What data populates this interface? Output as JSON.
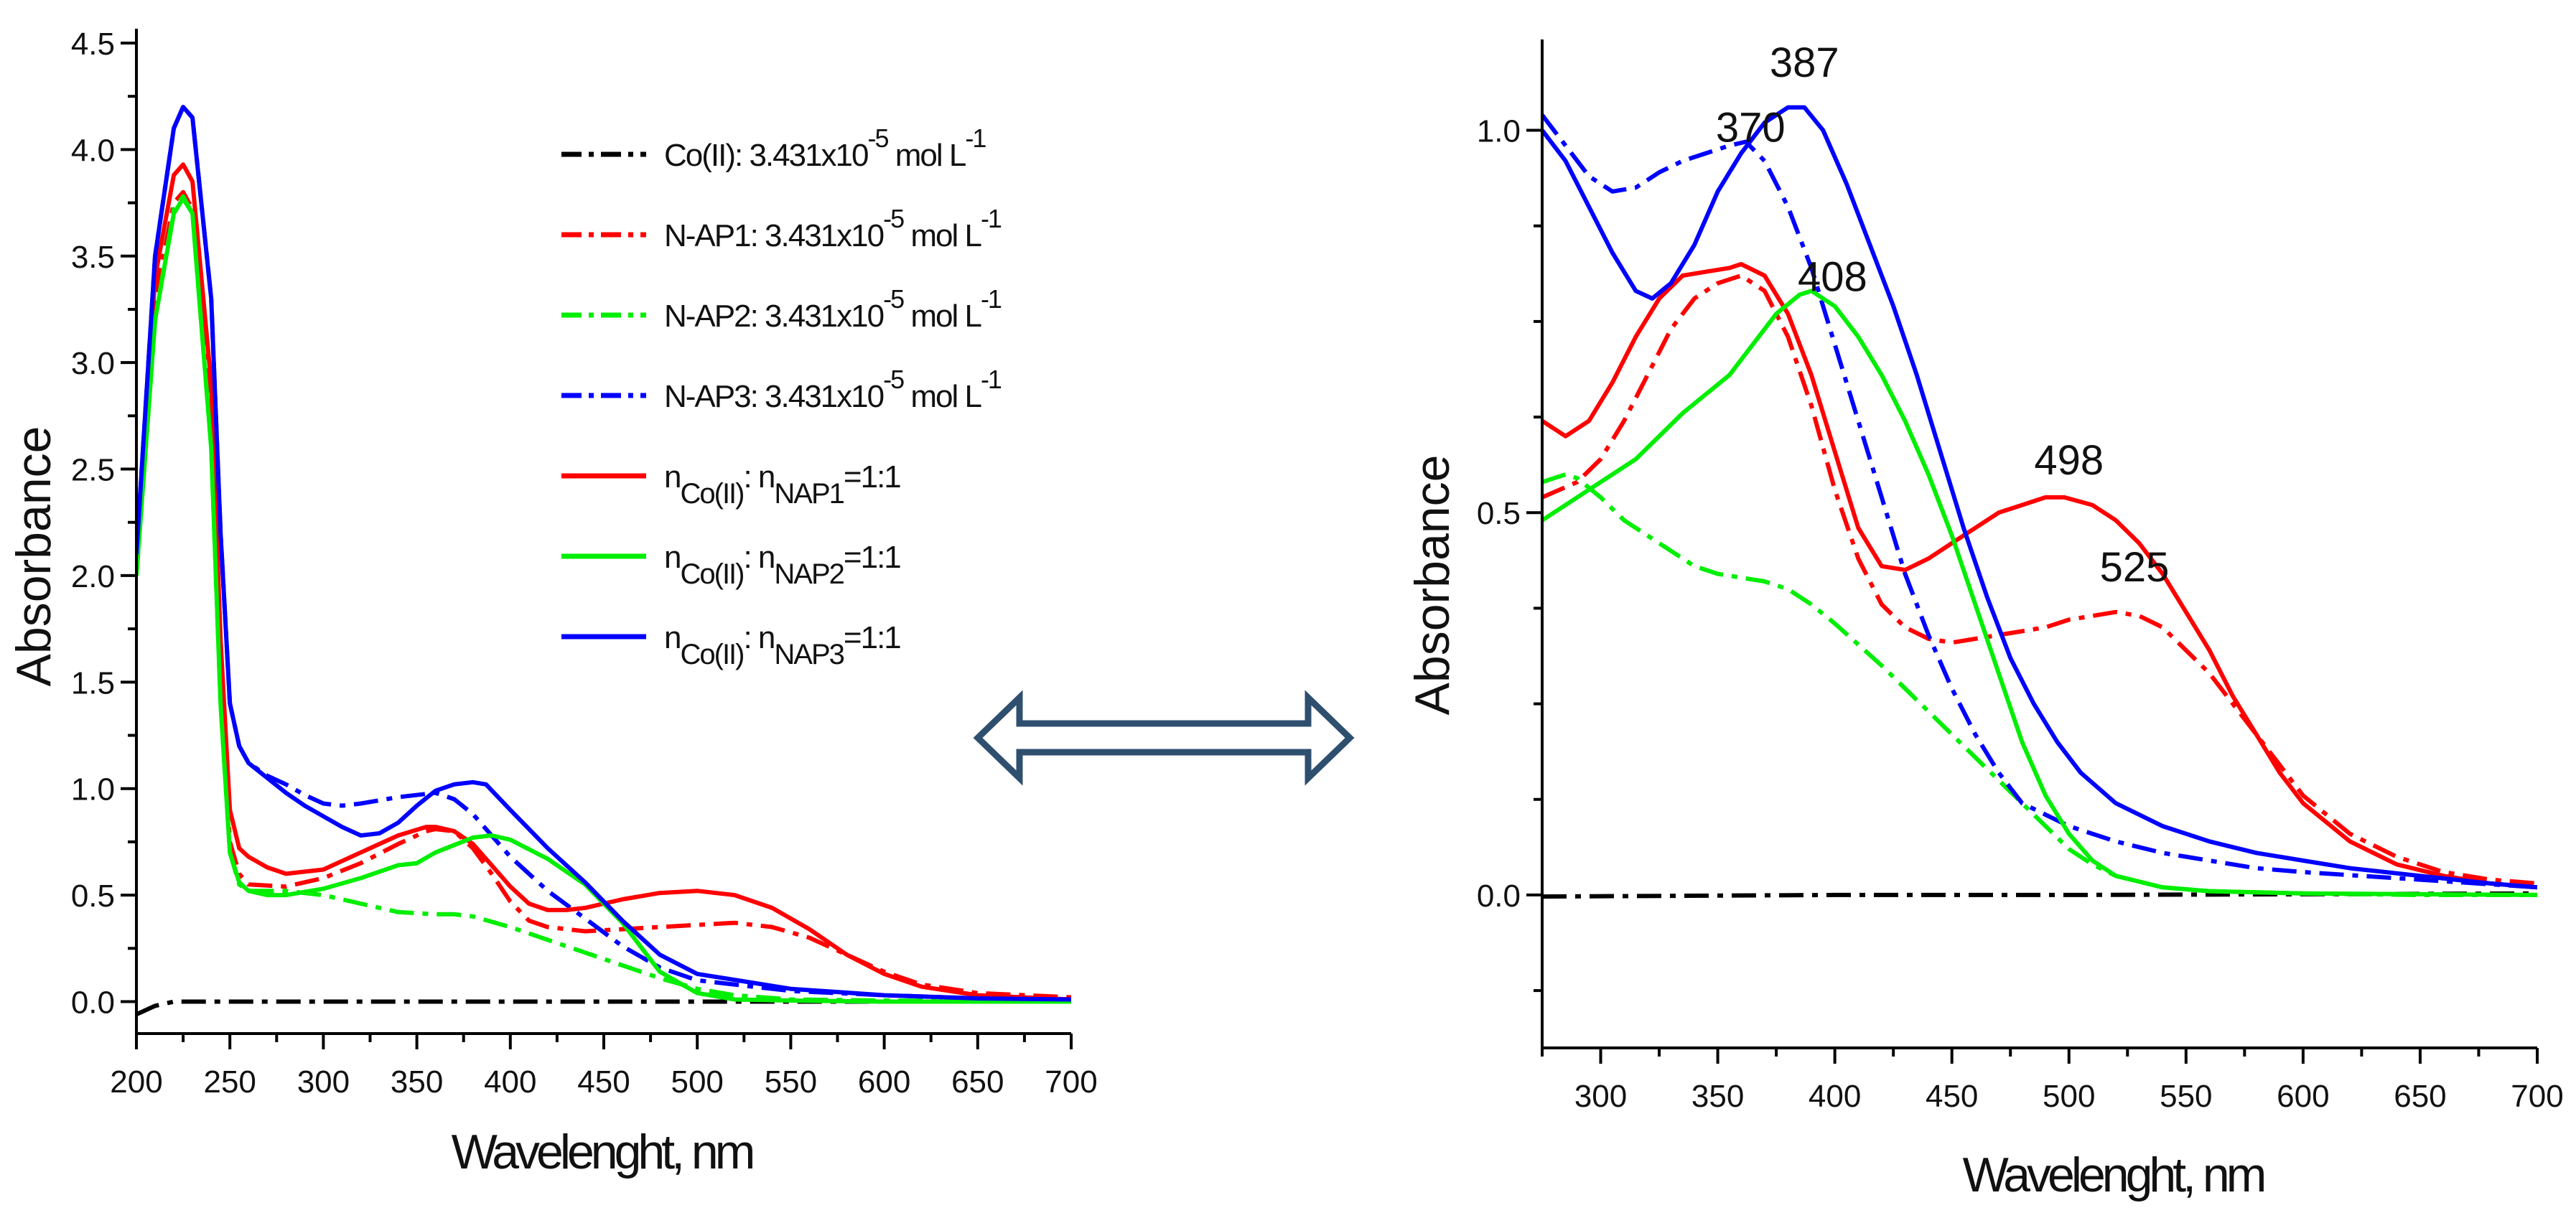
{
  "chart_data": [
    {
      "type": "line",
      "panel": "left",
      "title": "",
      "xlabel": "Wavelenght, nm",
      "ylabel": "Absorbance",
      "xlim": [
        200,
        700
      ],
      "ylim": [
        -0.15,
        4.5
      ],
      "xticks": [
        200,
        250,
        300,
        350,
        400,
        450,
        500,
        550,
        600,
        650,
        700
      ],
      "yticks": [
        0.0,
        0.5,
        1.0,
        1.5,
        2.0,
        2.5,
        3.0,
        3.5,
        4.0,
        4.5
      ],
      "ytick_labels": [
        "0.0",
        "0.5",
        "1.0",
        "1.5",
        "2.0",
        "2.5",
        "3.0",
        "3.5",
        "4.0",
        "4.5"
      ],
      "legend_position": "top-right",
      "series": [
        {
          "name": "Co(II): 3.431x10-5 mol L-1",
          "legend": {
            "pre": "Co(II): 3.431x10",
            "sup1": "-5",
            "mid": " mol L",
            "sup2": "-1"
          },
          "color": "#000000",
          "dash": "dashdot",
          "x": [
            200,
            210,
            220,
            250,
            300,
            400,
            500,
            600,
            700
          ],
          "y": [
            -0.06,
            -0.02,
            0.0,
            0.0,
            0.0,
            0.0,
            0.0,
            0.0,
            0.0
          ]
        },
        {
          "name": "N-AP1: 3.431x10-5 mol L-1",
          "legend": {
            "pre": "N-AP1: 3.431x10",
            "sup1": "-5",
            "mid": " mol L",
            "sup2": "-1"
          },
          "color": "#ff0000",
          "dash": "dashdot",
          "x": [
            200,
            210,
            220,
            225,
            230,
            240,
            245,
            250,
            255,
            260,
            280,
            300,
            320,
            340,
            355,
            360,
            370,
            380,
            390,
            400,
            410,
            420,
            440,
            460,
            480,
            500,
            520,
            540,
            560,
            580,
            600,
            620,
            650,
            700
          ],
          "y": [
            2.0,
            3.3,
            3.75,
            3.8,
            3.72,
            2.7,
            1.5,
            0.75,
            0.6,
            0.55,
            0.54,
            0.58,
            0.65,
            0.74,
            0.8,
            0.81,
            0.8,
            0.72,
            0.6,
            0.47,
            0.38,
            0.35,
            0.33,
            0.34,
            0.35,
            0.36,
            0.37,
            0.35,
            0.3,
            0.22,
            0.14,
            0.08,
            0.04,
            0.02
          ]
        },
        {
          "name": "N-AP2: 3.431x10-5 mol L-1",
          "legend": {
            "pre": "N-AP2: 3.431x10",
            "sup1": "-5",
            "mid": " mol L",
            "sup2": "-1"
          },
          "color": "#00ee00",
          "dash": "dashdot",
          "x": [
            200,
            210,
            220,
            225,
            230,
            240,
            245,
            250,
            255,
            260,
            280,
            300,
            320,
            340,
            360,
            370,
            380,
            400,
            420,
            440,
            460,
            480,
            500,
            520,
            550,
            600,
            700
          ],
          "y": [
            2.0,
            3.2,
            3.72,
            3.78,
            3.7,
            2.6,
            1.4,
            0.7,
            0.55,
            0.52,
            0.52,
            0.5,
            0.46,
            0.42,
            0.41,
            0.41,
            0.4,
            0.35,
            0.29,
            0.23,
            0.17,
            0.11,
            0.06,
            0.03,
            0.01,
            0.005,
            0.0
          ]
        },
        {
          "name": "N-AP3: 3.431x10-5 mol L-1",
          "legend": {
            "pre": "N-AP3: 3.431x10",
            "sup1": "-5",
            "mid": " mol L",
            "sup2": "-1"
          },
          "color": "#0000ff",
          "dash": "dashdot",
          "x": [
            200,
            210,
            220,
            225,
            230,
            240,
            245,
            250,
            255,
            260,
            270,
            280,
            290,
            300,
            310,
            320,
            340,
            360,
            370,
            380,
            390,
            400,
            420,
            440,
            460,
            480,
            500,
            550,
            600,
            650,
            700
          ],
          "y": [
            2.1,
            3.5,
            4.1,
            4.2,
            4.15,
            3.3,
            2.2,
            1.4,
            1.2,
            1.12,
            1.06,
            1.02,
            0.97,
            0.93,
            0.92,
            0.93,
            0.96,
            0.98,
            0.95,
            0.88,
            0.78,
            0.68,
            0.52,
            0.39,
            0.26,
            0.16,
            0.1,
            0.05,
            0.03,
            0.015,
            0.01
          ]
        },
        {
          "name": "nCo(II):nNAP1=1:1",
          "legend": {
            "pre": "n",
            "sub1": "Co(II)",
            "mid": ": n",
            "sub2": "NAP1",
            "post": "=1:1"
          },
          "color": "#ff0000",
          "dash": "solid",
          "x": [
            200,
            210,
            220,
            225,
            230,
            240,
            245,
            250,
            255,
            260,
            270,
            280,
            300,
            320,
            340,
            355,
            360,
            370,
            380,
            390,
            400,
            410,
            420,
            430,
            440,
            460,
            480,
            500,
            520,
            540,
            560,
            580,
            600,
            620,
            650,
            700
          ],
          "y": [
            2.1,
            3.4,
            3.88,
            3.93,
            3.85,
            2.9,
            1.7,
            0.9,
            0.72,
            0.68,
            0.63,
            0.6,
            0.62,
            0.7,
            0.78,
            0.82,
            0.82,
            0.8,
            0.74,
            0.64,
            0.54,
            0.46,
            0.43,
            0.43,
            0.44,
            0.48,
            0.51,
            0.52,
            0.5,
            0.44,
            0.34,
            0.22,
            0.13,
            0.07,
            0.03,
            0.01
          ]
        },
        {
          "name": "nCo(II):nNAP2=1:1",
          "legend": {
            "pre": "n",
            "sub1": "Co(II)",
            "mid": ": n",
            "sub2": "NAP2",
            "post": "=1:1"
          },
          "color": "#00ee00",
          "dash": "solid",
          "x": [
            200,
            210,
            220,
            225,
            230,
            240,
            245,
            250,
            255,
            260,
            270,
            280,
            300,
            320,
            340,
            350,
            360,
            380,
            390,
            400,
            420,
            440,
            460,
            480,
            500,
            520,
            550,
            600,
            700
          ],
          "y": [
            2.0,
            3.2,
            3.7,
            3.77,
            3.7,
            2.6,
            1.4,
            0.7,
            0.56,
            0.52,
            0.5,
            0.5,
            0.53,
            0.58,
            0.64,
            0.65,
            0.7,
            0.77,
            0.78,
            0.76,
            0.67,
            0.55,
            0.37,
            0.14,
            0.04,
            0.01,
            0.005,
            0.0,
            0.0
          ]
        },
        {
          "name": "nCo(II):nNAP3=1:1",
          "legend": {
            "pre": "n",
            "sub1": "Co(II)",
            "mid": ": n",
            "sub2": "NAP3",
            "post": "=1:1"
          },
          "color": "#0000ff",
          "dash": "solid",
          "x": [
            200,
            210,
            220,
            225,
            230,
            240,
            245,
            250,
            255,
            260,
            270,
            280,
            290,
            300,
            310,
            320,
            330,
            340,
            350,
            360,
            370,
            380,
            387,
            400,
            420,
            440,
            460,
            480,
            500,
            550,
            600,
            650,
            700
          ],
          "y": [
            2.1,
            3.5,
            4.1,
            4.2,
            4.15,
            3.3,
            2.2,
            1.4,
            1.2,
            1.12,
            1.05,
            0.98,
            0.92,
            0.87,
            0.82,
            0.78,
            0.79,
            0.84,
            0.92,
            0.99,
            1.02,
            1.03,
            1.02,
            0.9,
            0.72,
            0.56,
            0.38,
            0.22,
            0.13,
            0.06,
            0.03,
            0.015,
            0.01
          ]
        }
      ]
    },
    {
      "type": "line",
      "panel": "right",
      "title": "",
      "xlabel": "Wavelenght, nm",
      "ylabel": "Absorbance",
      "xlim": [
        275,
        700
      ],
      "ylim": [
        -0.2,
        1.1
      ],
      "xticks": [
        300,
        350,
        400,
        450,
        500,
        550,
        600,
        650,
        700
      ],
      "yticks": [
        0.0,
        0.5,
        1.0
      ],
      "ytick_labels": [
        "0.0",
        "0.5",
        "1.0"
      ],
      "minor_yticks": [
        -0.125,
        0.125,
        0.25,
        0.375,
        0.625,
        0.75,
        0.875
      ],
      "annotations": [
        {
          "text": "387",
          "x": 387,
          "y": 1.07
        },
        {
          "text": "370",
          "x": 364,
          "y": 0.985
        },
        {
          "text": "408",
          "x": 399,
          "y": 0.79
        },
        {
          "text": "498",
          "x": 500,
          "y": 0.55
        },
        {
          "text": "525",
          "x": 528,
          "y": 0.41
        }
      ],
      "series": [
        {
          "name": "Co(II)",
          "color": "#000000",
          "dash": "dashdot",
          "x": [
            275,
            400,
            500,
            600,
            700
          ],
          "y": [
            -0.002,
            0.0,
            0.0,
            0.001,
            0.002
          ]
        },
        {
          "name": "N-AP1",
          "color": "#ff0000",
          "dash": "dashdot",
          "x": [
            275,
            290,
            300,
            310,
            320,
            330,
            340,
            350,
            360,
            370,
            380,
            390,
            400,
            410,
            420,
            430,
            440,
            450,
            460,
            470,
            480,
            490,
            500,
            510,
            520,
            530,
            540,
            550,
            560,
            570,
            580,
            590,
            600,
            620,
            640,
            660,
            680,
            700
          ],
          "y": [
            0.52,
            0.54,
            0.57,
            0.62,
            0.68,
            0.74,
            0.78,
            0.8,
            0.81,
            0.79,
            0.73,
            0.64,
            0.53,
            0.44,
            0.38,
            0.35,
            0.335,
            0.33,
            0.335,
            0.34,
            0.345,
            0.35,
            0.36,
            0.365,
            0.37,
            0.365,
            0.35,
            0.32,
            0.29,
            0.25,
            0.21,
            0.17,
            0.13,
            0.08,
            0.05,
            0.03,
            0.02,
            0.015
          ]
        },
        {
          "name": "N-AP2",
          "color": "#00ee00",
          "dash": "dashdot",
          "x": [
            275,
            285,
            290,
            300,
            310,
            320,
            330,
            340,
            350,
            360,
            370,
            380,
            390,
            400,
            420,
            440,
            460,
            470,
            480,
            490,
            500,
            510,
            520,
            540,
            560,
            600,
            650,
            700
          ],
          "y": [
            0.54,
            0.55,
            0.545,
            0.52,
            0.49,
            0.47,
            0.45,
            0.43,
            0.42,
            0.415,
            0.41,
            0.4,
            0.38,
            0.355,
            0.3,
            0.24,
            0.18,
            0.15,
            0.12,
            0.09,
            0.06,
            0.04,
            0.025,
            0.01,
            0.005,
            0.002,
            0.0,
            0.0
          ]
        },
        {
          "name": "N-AP3",
          "color": "#0000ff",
          "dash": "dashdot",
          "x": [
            275,
            285,
            295,
            305,
            315,
            325,
            335,
            345,
            355,
            362,
            370,
            380,
            390,
            400,
            410,
            420,
            430,
            440,
            450,
            460,
            470,
            480,
            500,
            520,
            540,
            560,
            580,
            600,
            650,
            700
          ],
          "y": [
            1.02,
            0.98,
            0.94,
            0.92,
            0.925,
            0.945,
            0.96,
            0.97,
            0.98,
            0.985,
            0.96,
            0.9,
            0.82,
            0.72,
            0.62,
            0.52,
            0.42,
            0.34,
            0.27,
            0.21,
            0.16,
            0.12,
            0.09,
            0.07,
            0.055,
            0.045,
            0.035,
            0.03,
            0.02,
            0.01
          ]
        },
        {
          "name": "nCo(II):nNAP1=1:1",
          "color": "#ff0000",
          "dash": "solid",
          "x": [
            275,
            285,
            295,
            305,
            315,
            325,
            335,
            345,
            355,
            360,
            370,
            380,
            390,
            400,
            410,
            420,
            430,
            440,
            450,
            460,
            470,
            480,
            490,
            498,
            510,
            520,
            530,
            540,
            550,
            560,
            570,
            580,
            590,
            600,
            620,
            640,
            660,
            680,
            700
          ],
          "y": [
            0.62,
            0.6,
            0.62,
            0.67,
            0.73,
            0.78,
            0.81,
            0.815,
            0.82,
            0.825,
            0.81,
            0.76,
            0.68,
            0.58,
            0.48,
            0.43,
            0.425,
            0.44,
            0.46,
            0.48,
            0.5,
            0.51,
            0.52,
            0.52,
            0.51,
            0.49,
            0.46,
            0.42,
            0.37,
            0.32,
            0.26,
            0.21,
            0.16,
            0.12,
            0.07,
            0.04,
            0.025,
            0.015,
            0.01
          ]
        },
        {
          "name": "nCo(II):nNAP2=1:1",
          "color": "#00ee00",
          "dash": "solid",
          "x": [
            275,
            285,
            295,
            305,
            315,
            325,
            335,
            345,
            355,
            365,
            375,
            385,
            390,
            400,
            410,
            420,
            430,
            440,
            450,
            460,
            470,
            480,
            490,
            500,
            510,
            520,
            540,
            560,
            600,
            700
          ],
          "y": [
            0.49,
            0.51,
            0.53,
            0.55,
            0.57,
            0.6,
            0.63,
            0.655,
            0.68,
            0.72,
            0.76,
            0.785,
            0.79,
            0.77,
            0.73,
            0.68,
            0.62,
            0.55,
            0.47,
            0.38,
            0.29,
            0.2,
            0.13,
            0.08,
            0.045,
            0.025,
            0.01,
            0.005,
            0.002,
            0.0
          ]
        },
        {
          "name": "nCo(II):nNAP3=1:1",
          "color": "#0000ff",
          "dash": "solid",
          "x": [
            275,
            285,
            295,
            305,
            315,
            322,
            330,
            340,
            350,
            360,
            370,
            380,
            387,
            395,
            405,
            415,
            425,
            435,
            445,
            455,
            465,
            475,
            485,
            495,
            505,
            520,
            540,
            560,
            580,
            600,
            620,
            650,
            680,
            700
          ],
          "y": [
            1.0,
            0.96,
            0.9,
            0.84,
            0.79,
            0.78,
            0.8,
            0.85,
            0.92,
            0.97,
            1.01,
            1.03,
            1.03,
            1.0,
            0.93,
            0.85,
            0.77,
            0.68,
            0.58,
            0.48,
            0.39,
            0.31,
            0.25,
            0.2,
            0.16,
            0.12,
            0.09,
            0.07,
            0.055,
            0.045,
            0.035,
            0.025,
            0.015,
            0.01
          ]
        }
      ]
    }
  ],
  "connector": {
    "type": "double-arrow",
    "color": "#2f4f6f"
  }
}
